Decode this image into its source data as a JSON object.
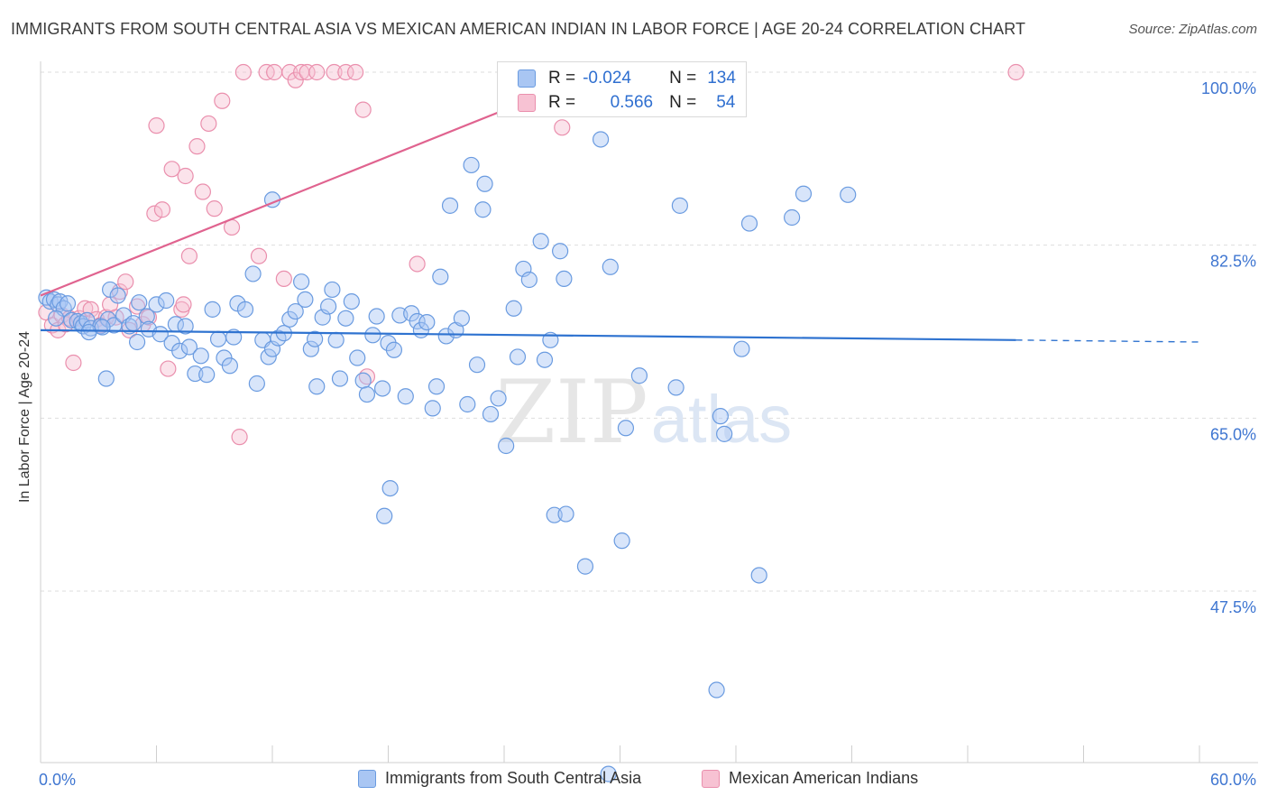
{
  "title": "IMMIGRANTS FROM SOUTH CENTRAL ASIA VS MEXICAN AMERICAN INDIAN IN LABOR FORCE | AGE 20-24 CORRELATION CHART",
  "source": "Source: ZipAtlas.com",
  "watermark": {
    "zip": "ZIP",
    "atlas": "atlas"
  },
  "colors": {
    "blue_fill": "#a9c6f3",
    "blue_stroke": "#6a9be0",
    "blue_line": "#2f73d0",
    "pink_fill": "#f7c2d3",
    "pink_stroke": "#ea8fad",
    "pink_line": "#e0638f",
    "tick_label": "#3f76d1",
    "grid": "#dddddd"
  },
  "stats": {
    "r_label": "R =",
    "n_label": "N =",
    "rows": [
      {
        "r": "-0.024",
        "n": "134",
        "color": "blue"
      },
      {
        "r": "0.566",
        "n": "54",
        "color": "pink"
      }
    ]
  },
  "chart_data": {
    "type": "scatter",
    "title": "IMMIGRANTS FROM SOUTH CENTRAL ASIA VS MEXICAN AMERICAN INDIAN IN LABOR FORCE | AGE 20-24 CORRELATION CHART",
    "xlabel": "",
    "ylabel": "In Labor Force | Age 20-24",
    "xlim": [
      0,
      60
    ],
    "ylim": [
      30,
      100
    ],
    "x_tick_labels": [
      "0.0%",
      "60.0%"
    ],
    "y_ticks": [
      47.5,
      65.0,
      82.5,
      100.0
    ],
    "y_tick_labels": [
      "47.5%",
      "65.0%",
      "82.5%",
      "100.0%"
    ],
    "grid": true,
    "legend_position": "bottom",
    "series": [
      {
        "name": "Immigrants from South Central Asia",
        "color": "blue",
        "trend": {
          "x": [
            0,
            50.5
          ],
          "y": [
            73.9,
            72.9
          ],
          "dashed_to": [
            60,
            72.7
          ]
        },
        "points": [
          [
            0.3,
            77.2
          ],
          [
            0.5,
            76.8
          ],
          [
            0.7,
            77.0
          ],
          [
            0.9,
            76.5
          ],
          [
            1.0,
            76.8
          ],
          [
            1.2,
            76.1
          ],
          [
            1.4,
            76.6
          ],
          [
            0.8,
            75.1
          ],
          [
            1.6,
            74.9
          ],
          [
            1.9,
            74.8
          ],
          [
            2.1,
            74.6
          ],
          [
            2.2,
            74.3
          ],
          [
            2.4,
            74.9
          ],
          [
            2.6,
            74.1
          ],
          [
            3.1,
            74.3
          ],
          [
            3.5,
            75.0
          ],
          [
            3.8,
            74.4
          ],
          [
            4.3,
            75.4
          ],
          [
            4.6,
            74.3
          ],
          [
            5.1,
            76.7
          ],
          [
            5.5,
            75.3
          ],
          [
            2.5,
            73.7
          ],
          [
            3.2,
            74.2
          ],
          [
            3.4,
            69.0
          ],
          [
            3.6,
            78.0
          ],
          [
            4.0,
            77.4
          ],
          [
            4.8,
            74.6
          ],
          [
            5.0,
            72.7
          ],
          [
            5.6,
            74.0
          ],
          [
            6.0,
            76.5
          ],
          [
            6.2,
            73.5
          ],
          [
            6.5,
            76.9
          ],
          [
            6.8,
            72.6
          ],
          [
            7.0,
            74.5
          ],
          [
            7.2,
            71.8
          ],
          [
            7.5,
            74.3
          ],
          [
            7.7,
            72.2
          ],
          [
            8.0,
            69.5
          ],
          [
            8.3,
            71.3
          ],
          [
            8.6,
            69.4
          ],
          [
            8.9,
            76.0
          ],
          [
            9.2,
            73.0
          ],
          [
            9.5,
            71.1
          ],
          [
            9.8,
            70.3
          ],
          [
            10.0,
            73.2
          ],
          [
            10.2,
            76.6
          ],
          [
            10.6,
            76.0
          ],
          [
            11.0,
            79.6
          ],
          [
            11.2,
            68.5
          ],
          [
            11.5,
            72.9
          ],
          [
            11.8,
            71.2
          ],
          [
            12.0,
            72.0
          ],
          [
            12.3,
            73.1
          ],
          [
            12.6,
            73.6
          ],
          [
            12.9,
            75.0
          ],
          [
            13.2,
            75.8
          ],
          [
            13.5,
            78.8
          ],
          [
            13.7,
            77.0
          ],
          [
            14.0,
            72.0
          ],
          [
            14.3,
            68.2
          ],
          [
            14.6,
            75.2
          ],
          [
            14.9,
            76.3
          ],
          [
            15.1,
            78.0
          ],
          [
            15.3,
            72.9
          ],
          [
            15.5,
            69.0
          ],
          [
            15.8,
            75.1
          ],
          [
            16.1,
            76.8
          ],
          [
            16.4,
            71.1
          ],
          [
            16.7,
            68.8
          ],
          [
            16.9,
            67.4
          ],
          [
            17.2,
            73.4
          ],
          [
            17.4,
            75.3
          ],
          [
            17.7,
            68.0
          ],
          [
            18.0,
            72.6
          ],
          [
            18.3,
            71.9
          ],
          [
            18.6,
            75.4
          ],
          [
            18.9,
            67.2
          ],
          [
            19.2,
            75.6
          ],
          [
            19.5,
            74.8
          ],
          [
            19.7,
            73.9
          ],
          [
            20.0,
            74.7
          ],
          [
            20.3,
            66.0
          ],
          [
            20.5,
            68.2
          ],
          [
            20.7,
            79.3
          ],
          [
            21.0,
            73.3
          ],
          [
            21.2,
            86.5
          ],
          [
            21.5,
            73.9
          ],
          [
            21.8,
            75.1
          ],
          [
            22.1,
            66.4
          ],
          [
            22.3,
            90.6
          ],
          [
            22.6,
            70.4
          ],
          [
            22.9,
            86.1
          ],
          [
            23.0,
            88.7
          ],
          [
            23.3,
            65.4
          ],
          [
            23.7,
            67.0
          ],
          [
            24.1,
            62.2
          ],
          [
            24.5,
            76.1
          ],
          [
            24.7,
            71.2
          ],
          [
            25.0,
            80.1
          ],
          [
            25.3,
            79.0
          ],
          [
            25.9,
            82.9
          ],
          [
            26.1,
            70.9
          ],
          [
            26.4,
            72.9
          ],
          [
            26.6,
            55.2
          ],
          [
            26.9,
            81.9
          ],
          [
            27.1,
            79.1
          ],
          [
            24.4,
            100.0
          ],
          [
            29.0,
            93.2
          ],
          [
            29.5,
            80.3
          ],
          [
            30.1,
            52.6
          ],
          [
            30.3,
            64.0
          ],
          [
            31.0,
            69.3
          ],
          [
            32.9,
            68.1
          ],
          [
            33.1,
            86.5
          ],
          [
            35.2,
            65.2
          ],
          [
            35.4,
            63.4
          ],
          [
            36.3,
            72.0
          ],
          [
            36.7,
            84.7
          ],
          [
            38.9,
            85.3
          ],
          [
            39.5,
            87.7
          ],
          [
            41.8,
            87.6
          ],
          [
            18.1,
            57.9
          ],
          [
            17.8,
            55.1
          ],
          [
            12.0,
            87.1
          ],
          [
            14.2,
            73.0
          ],
          [
            27.2,
            55.3
          ],
          [
            28.2,
            50.0
          ],
          [
            29.4,
            29.0
          ],
          [
            35.0,
            37.5
          ],
          [
            37.2,
            49.1
          ]
        ]
      },
      {
        "name": "Mexican American Indians",
        "color": "pink",
        "trend": {
          "x": [
            0,
            28.9
          ],
          "y": [
            77.4,
            100.0
          ]
        },
        "points": [
          [
            0.3,
            75.7
          ],
          [
            0.6,
            74.4
          ],
          [
            0.9,
            73.9
          ],
          [
            1.1,
            75.4
          ],
          [
            1.3,
            74.5
          ],
          [
            1.5,
            75.1
          ],
          [
            1.7,
            70.6
          ],
          [
            2.0,
            75.1
          ],
          [
            2.3,
            76.1
          ],
          [
            2.6,
            76.0
          ],
          [
            2.9,
            75.0
          ],
          [
            3.1,
            74.4
          ],
          [
            3.4,
            75.2
          ],
          [
            3.6,
            76.5
          ],
          [
            3.9,
            75.2
          ],
          [
            4.1,
            77.8
          ],
          [
            4.4,
            78.8
          ],
          [
            4.6,
            73.9
          ],
          [
            5.0,
            76.3
          ],
          [
            5.3,
            74.5
          ],
          [
            5.6,
            75.2
          ],
          [
            5.9,
            85.7
          ],
          [
            6.0,
            94.6
          ],
          [
            6.3,
            86.1
          ],
          [
            6.6,
            70.0
          ],
          [
            6.8,
            90.2
          ],
          [
            7.3,
            76.0
          ],
          [
            7.5,
            89.5
          ],
          [
            7.7,
            81.4
          ],
          [
            7.4,
            76.5
          ],
          [
            8.1,
            92.5
          ],
          [
            8.4,
            87.9
          ],
          [
            8.7,
            94.8
          ],
          [
            9.0,
            86.2
          ],
          [
            9.4,
            97.1
          ],
          [
            9.9,
            84.3
          ],
          [
            10.3,
            63.1
          ],
          [
            10.5,
            100.0
          ],
          [
            11.3,
            81.4
          ],
          [
            11.7,
            100.0
          ],
          [
            12.1,
            100.0
          ],
          [
            12.6,
            79.1
          ],
          [
            12.9,
            100.0
          ],
          [
            13.2,
            99.2
          ],
          [
            13.5,
            100.0
          ],
          [
            13.8,
            100.0
          ],
          [
            14.3,
            100.0
          ],
          [
            15.2,
            100.0
          ],
          [
            15.8,
            100.0
          ],
          [
            16.3,
            100.0
          ],
          [
            16.7,
            96.2
          ],
          [
            16.9,
            69.2
          ],
          [
            19.5,
            80.6
          ],
          [
            27.0,
            94.4
          ],
          [
            50.5,
            100.0
          ]
        ]
      }
    ]
  }
}
